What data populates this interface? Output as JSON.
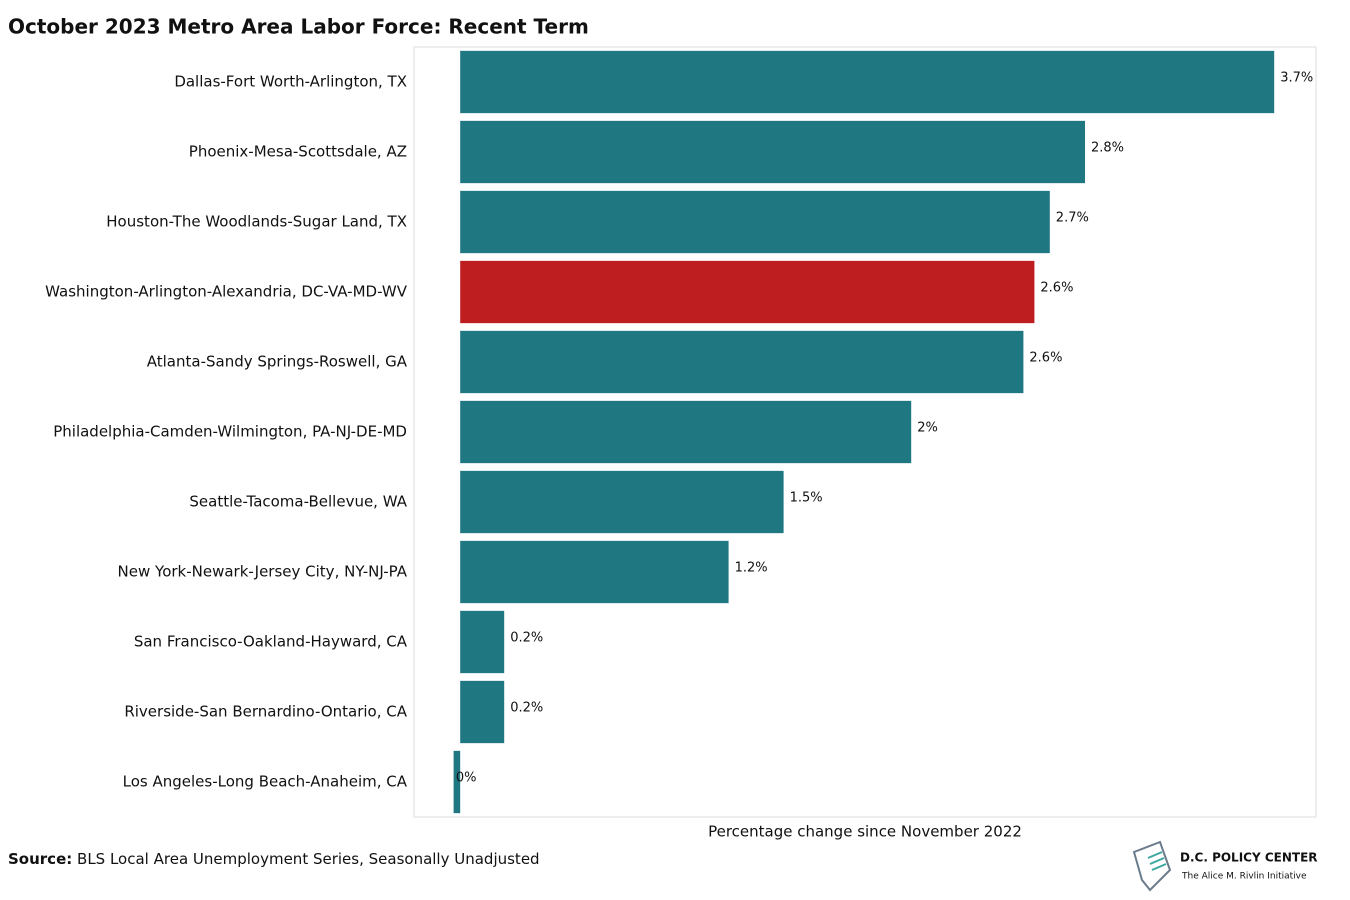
{
  "chart_data": {
    "type": "hbar",
    "title": "October 2023 Metro Area Labor Force: Recent Term",
    "x_label": "Percentage change since November 2022",
    "categories": [
      "Dallas-Fort Worth-Arlington, TX",
      "Phoenix-Mesa-Scottsdale, AZ",
      "Houston-The Woodlands-Sugar Land, TX",
      "Washington-Arlington-Alexandria, DC-VA-MD-WV",
      "Atlanta-Sandy Springs-Roswell, GA",
      "Philadelphia-Camden-Wilmington, PA-NJ-DE-MD",
      "Seattle-Tacoma-Bellevue, WA",
      "New York-Newark-Jersey City, NY-NJ-PA",
      "San Francisco-Oakland-Hayward, CA",
      "Riverside-San Bernardino-Ontario, CA",
      "Los Angeles-Long Beach-Anaheim, CA"
    ],
    "values": [
      3.7,
      2.84,
      2.68,
      2.61,
      2.56,
      2.05,
      1.47,
      1.22,
      0.2,
      0.2,
      -0.03
    ],
    "value_labels": [
      "3.7%",
      "2.8%",
      "2.7%",
      "2.6%",
      "2.6%",
      "2%",
      "1.5%",
      "1.2%",
      "0.2%",
      "0.2%",
      "0%"
    ],
    "colors": [
      "#1f7781",
      "#1f7781",
      "#1f7781",
      "#be1e20",
      "#1f7781",
      "#1f7781",
      "#1f7781",
      "#1f7781",
      "#1f7781",
      "#1f7781",
      "#1f7781"
    ],
    "xlim": [
      -0.21,
      3.89
    ],
    "source_label": "Source:",
    "source": "BLS Local Area Unemployment Series, Seasonally Unadjusted",
    "logo_title": "D.C. POLICY CENTER",
    "logo_subtitle": "The Alice M. Rivlin Initiative"
  }
}
